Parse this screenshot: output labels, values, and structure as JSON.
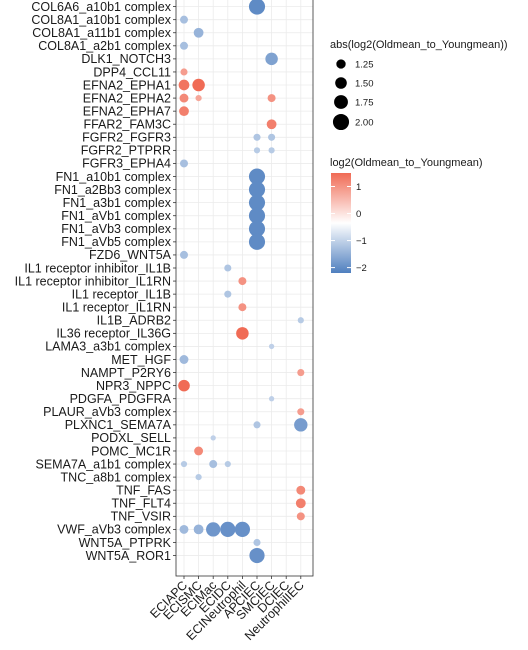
{
  "chart_data": {
    "type": "scatter",
    "subtype": "dot-plot",
    "title": "",
    "xlabel": "",
    "ylabel": "",
    "grid": true,
    "legend_position": "right",
    "x_categories": [
      "ECIAPC",
      "ECISMC",
      "ECIMac",
      "ECIDC",
      "ECINeutrophil",
      "APCIEC",
      "SMCIEC",
      "DCIEC",
      "NeutrophilIEC"
    ],
    "y_categories": [
      "COL6A6_a10b1 complex",
      "COL8A1_a10b1 complex",
      "COL8A1_a11b1 complex",
      "COL8A1_a2b1 complex",
      "DLK1_NOTCH3",
      "DPP4_CCL11",
      "EFNA2_EPHA1",
      "EFNA2_EPHA2",
      "EFNA2_EPHA7",
      "FFAR2_FAM3C",
      "FGFR2_FGFR3",
      "FGFR2_PTPRR",
      "FGFR3_EPHA4",
      "FN1_a10b1 complex",
      "FN1_a2Bb3 complex",
      "FN1_a3b1 complex",
      "FN1_aVb1 complex",
      "FN1_aVb3 complex",
      "FN1_aVb5 complex",
      "FZD6_WNT5A",
      "IL1 receptor inhibitor_IL1B",
      "IL1 receptor inhibitor_IL1RN",
      "IL1 receptor_IL1B",
      "IL1 receptor_IL1RN",
      "IL1B_ADRB2",
      "IL36 receptor_IL36G",
      "LAMA3_a3b1 complex",
      "MET_HGF",
      "NAMPT_P2RY6",
      "NPR3_NPPC",
      "PDGFA_PDGFRA",
      "PLAUR_aVb3 complex",
      "PLXNC1_SEMA7A",
      "PODXL_SELL",
      "POMC_MC1R",
      "SEMA7A_a1b1 complex",
      "TNC_a8b1 complex",
      "TNF_FAS",
      "TNF_FLT4",
      "TNF_VSIR",
      "VWF_aVb3 complex",
      "WNT5A_PTPRK",
      "WNT5A_ROR1"
    ],
    "size_variable": "abs(log2(Oldmean_to_Youngmean))",
    "color_variable": "log2(Oldmean_to_Youngmean)",
    "size_legend": {
      "title": "abs(log2(Oldmean_to_Youngmean))",
      "breaks": [
        1.25,
        1.5,
        1.75,
        2.0
      ],
      "labels": [
        "1.25",
        "1.50",
        "1.75",
        "2.00"
      ]
    },
    "color_legend": {
      "title": "log2(Oldmean_to_Youngmean)",
      "breaks": [
        1,
        0,
        -1,
        -2
      ],
      "labels": [
        "1",
        "0",
        "−1",
        "−2"
      ],
      "low_color": "#4f7fbf",
      "mid_color": "#ffffff",
      "high_color": "#f06b55",
      "limits": [
        -2.2,
        1.5
      ]
    },
    "points": [
      {
        "x": "APCIEC",
        "y": "COL6A6_a10b1 complex",
        "value": -2.0
      },
      {
        "x": "ECIAPC",
        "y": "COL8A1_a10b1 complex",
        "value": -1.1
      },
      {
        "x": "ECISMC",
        "y": "COL8A1_a11b1 complex",
        "value": -1.3
      },
      {
        "x": "ECIAPC",
        "y": "COL8A1_a2b1 complex",
        "value": -1.1
      },
      {
        "x": "SMCIEC",
        "y": "DLK1_NOTCH3",
        "value": -1.6
      },
      {
        "x": "ECIAPC",
        "y": "DPP4_CCL11",
        "value": 1.0
      },
      {
        "x": "ECIAPC",
        "y": "EFNA2_EPHA1",
        "value": 1.4
      },
      {
        "x": "ECISMC",
        "y": "EFNA2_EPHA1",
        "value": 1.6
      },
      {
        "x": "ECIAPC",
        "y": "EFNA2_EPHA2",
        "value": 1.2
      },
      {
        "x": "ECISMC",
        "y": "EFNA2_EPHA2",
        "value": 0.9
      },
      {
        "x": "SMCIEC",
        "y": "EFNA2_EPHA2",
        "value": 1.1
      },
      {
        "x": "ECIAPC",
        "y": "EFNA2_EPHA7",
        "value": 1.3
      },
      {
        "x": "SMCIEC",
        "y": "FFAR2_FAM3C",
        "value": 1.3
      },
      {
        "x": "APCIEC",
        "y": "FGFR2_FGFR3",
        "value": -1.0
      },
      {
        "x": "SMCIEC",
        "y": "FGFR2_FGFR3",
        "value": -1.0
      },
      {
        "x": "APCIEC",
        "y": "FGFR2_PTPRR",
        "value": -0.9
      },
      {
        "x": "SMCIEC",
        "y": "FGFR2_PTPRR",
        "value": -0.9
      },
      {
        "x": "ECIAPC",
        "y": "FGFR3_EPHA4",
        "value": -1.1
      },
      {
        "x": "APCIEC",
        "y": "FN1_a10b1 complex",
        "value": -2.0
      },
      {
        "x": "APCIEC",
        "y": "FN1_a2Bb3 complex",
        "value": -2.0
      },
      {
        "x": "APCIEC",
        "y": "FN1_a3b1 complex",
        "value": -2.0
      },
      {
        "x": "APCIEC",
        "y": "FN1_aVb1 complex",
        "value": -2.0
      },
      {
        "x": "APCIEC",
        "y": "FN1_aVb3 complex",
        "value": -2.0
      },
      {
        "x": "APCIEC",
        "y": "FN1_aVb5 complex",
        "value": -2.0
      },
      {
        "x": "ECIAPC",
        "y": "FZD6_WNT5A",
        "value": -1.1
      },
      {
        "x": "ECIDC",
        "y": "IL1 receptor inhibitor_IL1B",
        "value": -1.0
      },
      {
        "x": "ECINeutrophil",
        "y": "IL1 receptor inhibitor_IL1RN",
        "value": 1.1
      },
      {
        "x": "ECIDC",
        "y": "IL1 receptor_IL1B",
        "value": -1.0
      },
      {
        "x": "ECINeutrophil",
        "y": "IL1 receptor_IL1RN",
        "value": 1.1
      },
      {
        "x": "NeutrophilIEC",
        "y": "IL1B_ADRB2",
        "value": -0.9
      },
      {
        "x": "ECINeutrophil",
        "y": "IL36 receptor_IL36G",
        "value": 1.6
      },
      {
        "x": "SMCIEC",
        "y": "LAMA3_a3b1 complex",
        "value": -0.8
      },
      {
        "x": "ECIAPC",
        "y": "MET_HGF",
        "value": -1.2
      },
      {
        "x": "NeutrophilIEC",
        "y": "NAMPT_P2RY6",
        "value": 1.0
      },
      {
        "x": "ECIAPC",
        "y": "NPR3_NPPC",
        "value": 1.5
      },
      {
        "x": "SMCIEC",
        "y": "PDGFA_PDGFRA",
        "value": -0.8
      },
      {
        "x": "NeutrophilIEC",
        "y": "PLAUR_aVb3 complex",
        "value": 1.0
      },
      {
        "x": "APCIEC",
        "y": "PLXNC1_SEMA7A",
        "value": -1.0
      },
      {
        "x": "NeutrophilIEC",
        "y": "PLXNC1_SEMA7A",
        "value": -1.7
      },
      {
        "x": "ECIMac",
        "y": "PODXL_SELL",
        "value": -0.8
      },
      {
        "x": "ECISMC",
        "y": "POMC_MC1R",
        "value": 1.2
      },
      {
        "x": "ECIAPC",
        "y": "SEMA7A_a1b1 complex",
        "value": -0.9
      },
      {
        "x": "ECIMac",
        "y": "SEMA7A_a1b1 complex",
        "value": -1.1
      },
      {
        "x": "ECIDC",
        "y": "SEMA7A_a1b1 complex",
        "value": -0.9
      },
      {
        "x": "ECISMC",
        "y": "TNC_a8b1 complex",
        "value": -0.9
      },
      {
        "x": "NeutrophilIEC",
        "y": "TNF_FAS",
        "value": 1.2
      },
      {
        "x": "NeutrophilIEC",
        "y": "TNF_FLT4",
        "value": 1.3
      },
      {
        "x": "NeutrophilIEC",
        "y": "TNF_VSIR",
        "value": 1.1
      },
      {
        "x": "ECIAPC",
        "y": "VWF_aVb3 complex",
        "value": -1.2
      },
      {
        "x": "ECISMC",
        "y": "VWF_aVb3 complex",
        "value": -1.3
      },
      {
        "x": "ECIMac",
        "y": "VWF_aVb3 complex",
        "value": -1.8
      },
      {
        "x": "ECIDC",
        "y": "VWF_aVb3 complex",
        "value": -1.9
      },
      {
        "x": "ECINeutrophil",
        "y": "VWF_aVb3 complex",
        "value": -1.9
      },
      {
        "x": "APCIEC",
        "y": "WNT5A_PTPRK",
        "value": -1.0
      },
      {
        "x": "APCIEC",
        "y": "WNT5A_ROR1",
        "value": -1.9
      }
    ]
  }
}
